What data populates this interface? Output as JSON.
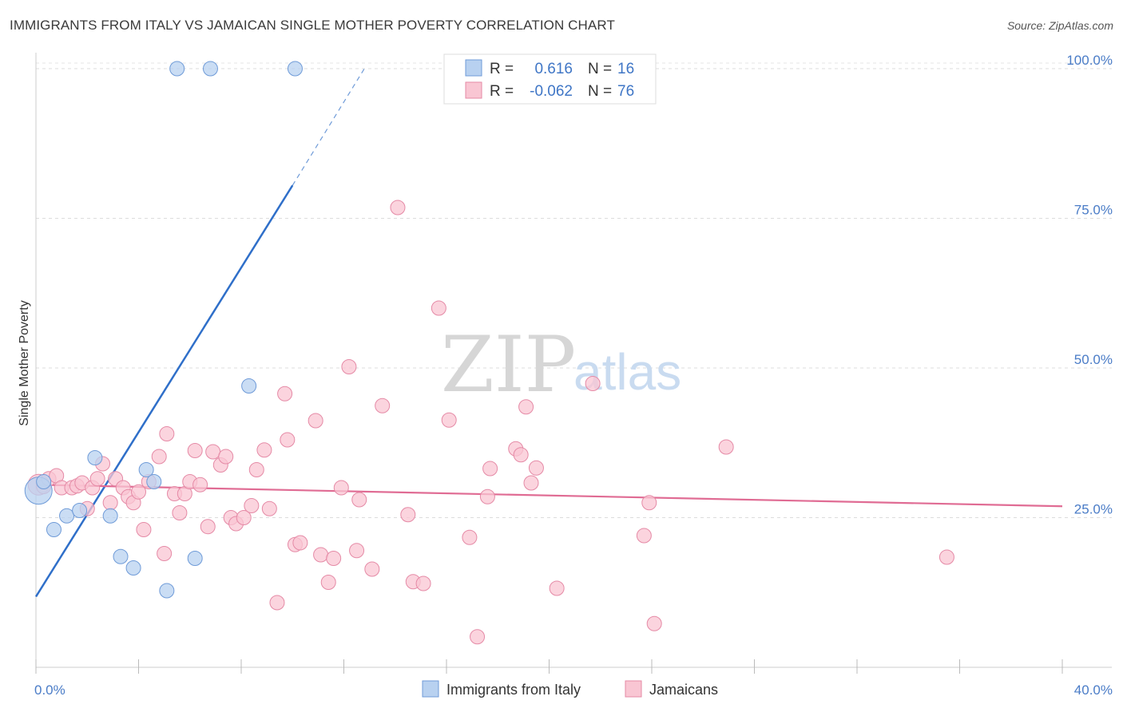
{
  "title": "IMMIGRANTS FROM ITALY VS JAMAICAN SINGLE MOTHER POVERTY CORRELATION CHART",
  "source": "Source: ZipAtlas.com",
  "watermark": {
    "zip": "ZIP",
    "atlas": "atlas"
  },
  "legend": {
    "r_label": "R =",
    "n_label": "N =",
    "rows": [
      {
        "r": "0.616",
        "n": "16",
        "fill": "#b8d1f0",
        "stroke": "#6f9bd8"
      },
      {
        "r": "-0.062",
        "n": "76",
        "fill": "#f9c6d3",
        "stroke": "#e58aa6"
      }
    ]
  },
  "bottom_legend": [
    {
      "label": "Immigrants from Italy",
      "fill": "#b8d1f0",
      "stroke": "#6f9bd8"
    },
    {
      "label": "Jamaicans",
      "fill": "#f9c6d3",
      "stroke": "#e58aa6"
    }
  ],
  "chart_data": {
    "type": "scatter",
    "title": "IMMIGRANTS FROM ITALY VS JAMAICAN SINGLE MOTHER POVERTY CORRELATION CHART",
    "xlabel": "",
    "ylabel": "Single Mother Poverty",
    "xlim": [
      0,
      40
    ],
    "ylim": [
      0,
      102
    ],
    "x_tick_labels": [
      "0.0%",
      "40.0%"
    ],
    "y_ticks": [
      25,
      50,
      75,
      100
    ],
    "y_tick_labels": [
      "25.0%",
      "50.0%",
      "75.0%",
      "100.0%"
    ],
    "grid": true,
    "legend_position": "top-center",
    "series": [
      {
        "name": "Immigrants from Italy",
        "color": "#6f9bd8",
        "fill": "#b8d1f0",
        "points": [
          [
            0.1,
            29.5,
            3
          ],
          [
            0.3,
            31.0,
            1
          ],
          [
            0.7,
            23.0,
            1
          ],
          [
            1.2,
            25.3,
            1
          ],
          [
            1.7,
            26.2,
            1
          ],
          [
            2.3,
            35.0,
            1
          ],
          [
            2.9,
            25.3,
            1
          ],
          [
            3.3,
            18.5,
            1
          ],
          [
            3.8,
            16.6,
            1
          ],
          [
            4.3,
            33.0,
            1
          ],
          [
            4.6,
            31.0,
            1
          ],
          [
            5.1,
            12.8,
            1
          ],
          [
            6.2,
            18.2,
            1
          ],
          [
            8.3,
            47.0,
            1
          ],
          [
            5.5,
            100.0,
            1
          ],
          [
            6.8,
            100.0,
            1
          ],
          [
            10.1,
            100.0,
            1
          ]
        ],
        "trend": {
          "x": [
            0,
            10.0
          ],
          "y": [
            11.8,
            80.5
          ],
          "dashed_to": [
            12.8,
            100.0
          ]
        }
      },
      {
        "name": "Jamaicans",
        "color": "#e58aa6",
        "fill": "#f9c6d3",
        "points": [
          [
            0.1,
            30.5,
            2
          ],
          [
            0.3,
            30.2,
            1
          ],
          [
            0.5,
            31.5,
            1
          ],
          [
            0.8,
            32.0,
            1
          ],
          [
            1.0,
            30.0,
            1
          ],
          [
            1.4,
            30.0,
            1
          ],
          [
            1.6,
            30.3,
            1
          ],
          [
            1.8,
            30.8,
            1
          ],
          [
            2.0,
            26.5,
            1
          ],
          [
            2.2,
            30.0,
            1
          ],
          [
            2.4,
            31.5,
            1
          ],
          [
            2.6,
            34.0,
            1
          ],
          [
            2.9,
            27.5,
            1
          ],
          [
            3.1,
            31.5,
            1
          ],
          [
            3.4,
            30.0,
            1
          ],
          [
            3.6,
            28.5,
            1
          ],
          [
            3.8,
            27.5,
            1
          ],
          [
            4.0,
            29.3,
            1
          ],
          [
            4.2,
            23.0,
            1
          ],
          [
            4.4,
            31.0,
            1
          ],
          [
            4.8,
            35.2,
            1
          ],
          [
            5.0,
            19.0,
            1
          ],
          [
            5.1,
            39.0,
            1
          ],
          [
            5.4,
            29.0,
            1
          ],
          [
            5.6,
            25.8,
            1
          ],
          [
            5.8,
            29.0,
            1
          ],
          [
            6.0,
            31.0,
            1
          ],
          [
            6.2,
            36.2,
            1
          ],
          [
            6.4,
            30.5,
            1
          ],
          [
            6.7,
            23.5,
            1
          ],
          [
            6.9,
            36.0,
            1
          ],
          [
            7.2,
            33.8,
            1
          ],
          [
            7.4,
            35.2,
            1
          ],
          [
            7.6,
            25.0,
            1
          ],
          [
            7.8,
            24.0,
            1
          ],
          [
            8.1,
            25.0,
            1
          ],
          [
            8.4,
            27.0,
            1
          ],
          [
            8.6,
            33.0,
            1
          ],
          [
            8.9,
            36.3,
            1
          ],
          [
            9.1,
            26.5,
            1
          ],
          [
            9.4,
            10.8,
            1
          ],
          [
            9.7,
            45.7,
            1
          ],
          [
            9.8,
            38.0,
            1
          ],
          [
            10.1,
            20.5,
            1
          ],
          [
            10.3,
            20.8,
            1
          ],
          [
            10.9,
            41.2,
            1
          ],
          [
            11.1,
            18.8,
            1
          ],
          [
            11.4,
            14.2,
            1
          ],
          [
            11.6,
            18.2,
            1
          ],
          [
            11.9,
            30.0,
            1
          ],
          [
            12.2,
            50.2,
            1
          ],
          [
            12.5,
            19.5,
            1
          ],
          [
            12.6,
            28.0,
            1
          ],
          [
            13.1,
            16.4,
            1
          ],
          [
            13.5,
            43.7,
            1
          ],
          [
            14.1,
            76.8,
            1
          ],
          [
            14.5,
            25.5,
            1
          ],
          [
            14.7,
            14.3,
            1
          ],
          [
            15.1,
            14.0,
            1
          ],
          [
            15.7,
            60.0,
            1
          ],
          [
            16.1,
            41.3,
            1
          ],
          [
            16.9,
            21.7,
            1
          ],
          [
            17.2,
            5.1,
            1
          ],
          [
            17.6,
            28.5,
            1
          ],
          [
            17.7,
            33.2,
            1
          ],
          [
            18.7,
            36.5,
            1
          ],
          [
            18.9,
            35.5,
            1
          ],
          [
            19.1,
            43.5,
            1
          ],
          [
            19.3,
            30.8,
            1
          ],
          [
            19.5,
            33.3,
            1
          ],
          [
            20.3,
            13.2,
            1
          ],
          [
            21.7,
            47.4,
            1
          ],
          [
            23.7,
            22.0,
            1
          ],
          [
            23.9,
            27.5,
            1
          ],
          [
            24.1,
            7.3,
            1
          ],
          [
            26.9,
            36.8,
            1
          ],
          [
            35.5,
            18.4,
            1
          ]
        ],
        "trend": {
          "x": [
            0,
            40
          ],
          "y": [
            30.5,
            26.9
          ]
        }
      }
    ]
  }
}
